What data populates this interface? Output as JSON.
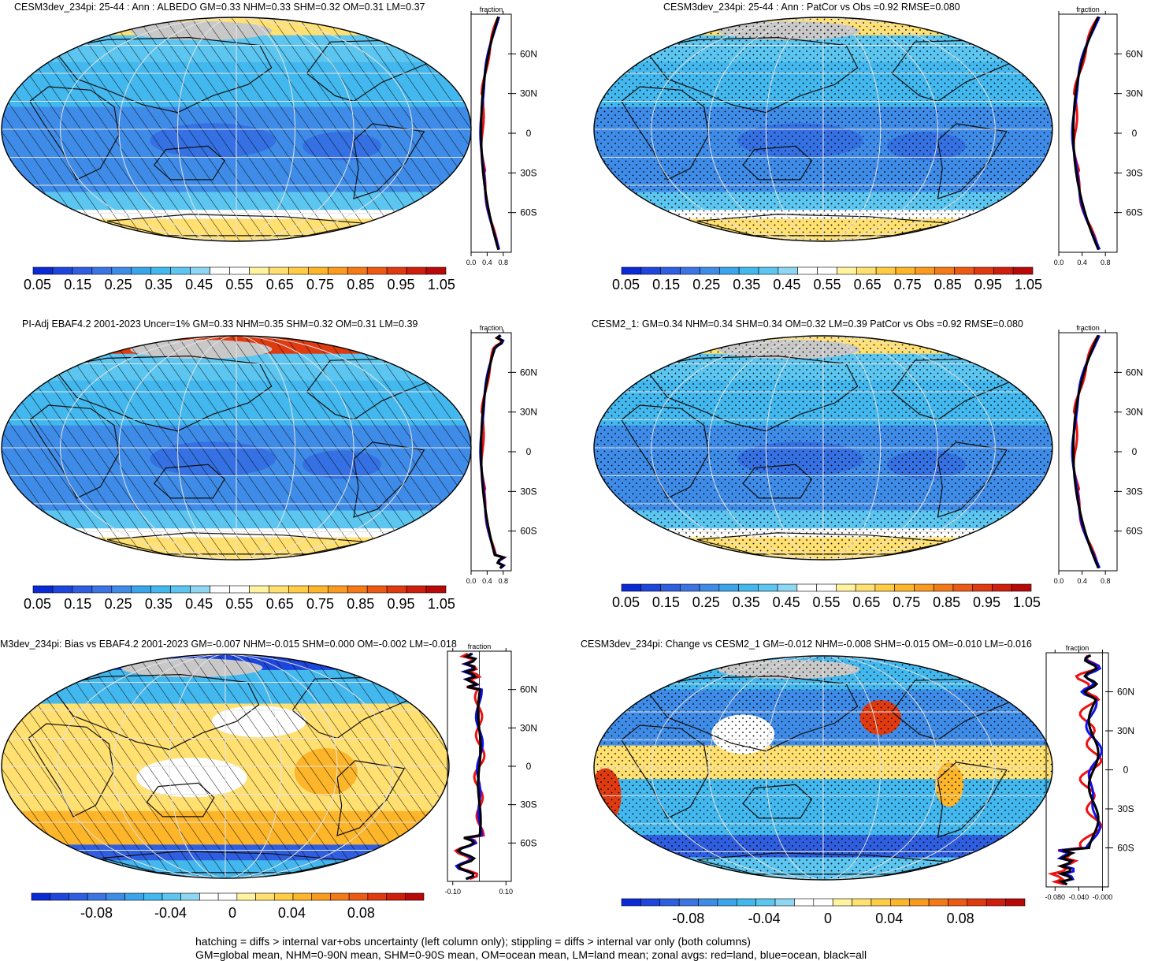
{
  "panels": [
    {
      "id": "p1",
      "title": "CESM3dev_234pi: 25-44 : Ann : ALBEDO GM=0.33 NHM=0.33 SHM=0.32 OM=0.31 LM=0.37",
      "kind": "abs",
      "overlay": "hatch",
      "zonal_xlabels": [
        "0.0",
        "0.4",
        "0.8"
      ],
      "zonal_xlim": [
        0,
        1.0
      ],
      "zonal_top_label": "fraction",
      "lat_labels": [
        "60N",
        "30N",
        "0",
        "30S",
        "60S"
      ]
    },
    {
      "id": "p2",
      "title": "CESM3dev_234pi: 25-44 : Ann : PatCor vs Obs =0.92 RMSE=0.080",
      "kind": "abs",
      "overlay": "stipple",
      "zonal_xlabels": [
        "0.0",
        "0.4",
        "0.8"
      ],
      "zonal_xlim": [
        0,
        1.0
      ],
      "zonal_top_label": "fraction",
      "lat_labels": [
        "60N",
        "30N",
        "0",
        "30S",
        "60S"
      ]
    },
    {
      "id": "p3",
      "title": "PI-Adj EBAF4.2 2001-2023 Uncer=1% GM=0.33 NHM=0.35 SHM=0.32 OM=0.31 LM=0.39",
      "kind": "obs",
      "overlay": "hatch",
      "zonal_xlabels": [
        "0.0",
        "0.4",
        "0.8"
      ],
      "zonal_xlim": [
        0,
        1.0
      ],
      "zonal_top_label": "fraction",
      "lat_labels": [
        "60N",
        "30N",
        "0",
        "30S",
        "60S"
      ]
    },
    {
      "id": "p4",
      "title": "CESM2_1: GM=0.34 NHM=0.34 SHM=0.34 OM=0.32 LM=0.39 PatCor vs Obs =0.92 RMSE=0.080",
      "kind": "abs",
      "overlay": "stipple",
      "zonal_xlabels": [
        "0.0",
        "0.4",
        "0.8"
      ],
      "zonal_xlim": [
        0,
        1.0
      ],
      "zonal_top_label": "fraction",
      "lat_labels": [
        "60N",
        "30N",
        "0",
        "30S",
        "60S"
      ]
    },
    {
      "id": "p5",
      "title": "M3dev_234pi: Bias vs EBAF4.2 2001-2023 GM=-0.007 NHM=-0.015 SHM=0.000 OM=-0.002 LM=-0.018",
      "kind": "bias",
      "overlay": "hatch",
      "zonal_xlabels": [
        "-0.10",
        "0.10"
      ],
      "zonal_xlim": [
        -0.12,
        0.12
      ],
      "zonal_top_label": "fraction",
      "lat_labels": [
        "60N",
        "30N",
        "0",
        "30S",
        "60S"
      ]
    },
    {
      "id": "p6",
      "title": "CESM3dev_234pi: Change vs CESM2_1 GM=-0.012 NHM=-0.008 SHM=-0.015 OM=-0.010 LM=-0.016",
      "kind": "change",
      "overlay": "stipple",
      "zonal_xlabels": [
        "-0.080",
        "-0.040",
        "-0.000"
      ],
      "zonal_xlim": [
        -0.095,
        0.01
      ],
      "zonal_top_label": "fraction",
      "lat_labels": [
        "60N",
        "30N",
        "0",
        "30S",
        "60S"
      ]
    }
  ],
  "colorbars": {
    "abs_labels": [
      "0.05",
      "0.15",
      "0.25",
      "0.35",
      "0.45",
      "0.55",
      "0.65",
      "0.75",
      "0.85",
      "0.95",
      "1.05"
    ],
    "diff_labels": [
      "-0.08",
      "-0.04",
      "0",
      "0.04",
      "0.08"
    ],
    "colors": [
      "#0a2ad6",
      "#1e46dc",
      "#2f5fe0",
      "#3c74e4",
      "#3f8ce8",
      "#3ba5ec",
      "#43b8ee",
      "#5cc6f0",
      "#8fd6f3",
      "#ffffff",
      "#ffffff",
      "#fff3a0",
      "#ffe070",
      "#ffcc44",
      "#fdb52a",
      "#fa9a1e",
      "#f47a18",
      "#ec5a14",
      "#e03a10",
      "#cf1e0c",
      "#b80808"
    ]
  },
  "legend_colors": {
    "land": "#ee1111",
    "ocean": "#1111ee",
    "all": "#000000"
  },
  "footer": [
    "hatching = diffs > internal var+obs uncertainty (left column only); stippling = diffs > internal var only (both columns)",
    "GM=global mean, NHM=0-90N mean, SHM=0-90S mean, OM=ocean mean, LM=land mean; zonal avgs: red=land, blue=ocean, black=all"
  ]
}
